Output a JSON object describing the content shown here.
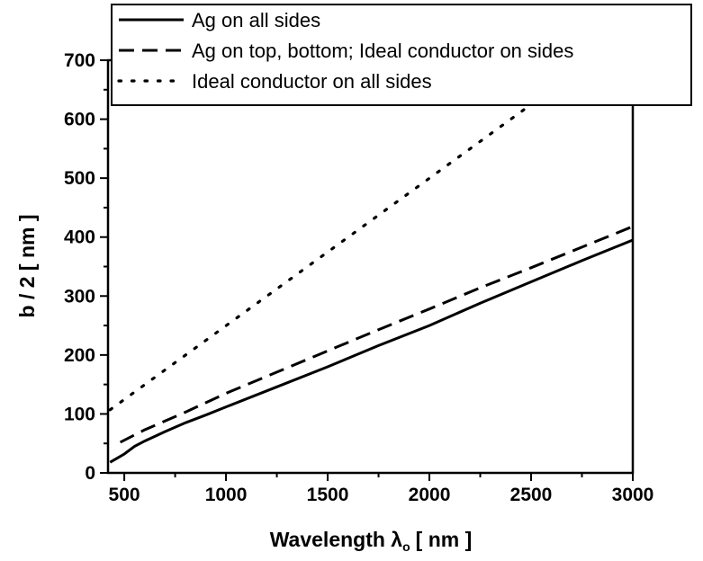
{
  "chart_data": {
    "type": "line",
    "title": "",
    "xlabel": "Wavelength λ",
    "xlabel_subscript": "o",
    "xlabel_unit": "[ nm ]",
    "ylabel": "b / 2 [ nm ]",
    "xlim": [
      420,
      3000
    ],
    "ylim": [
      0,
      700
    ],
    "xticks": [
      500,
      1000,
      1500,
      2000,
      2500,
      3000
    ],
    "yticks": [
      0,
      100,
      200,
      300,
      400,
      500,
      600,
      700
    ],
    "grid": false,
    "legend_position": "top",
    "series": [
      {
        "name": "Ag on all sides",
        "style": "solid",
        "points": [
          [
            430,
            18
          ],
          [
            500,
            32
          ],
          [
            550,
            45
          ],
          [
            600,
            54
          ],
          [
            700,
            70
          ],
          [
            800,
            85
          ],
          [
            900,
            98
          ],
          [
            1000,
            112
          ],
          [
            1250,
            146
          ],
          [
            1500,
            180
          ],
          [
            1750,
            216
          ],
          [
            2000,
            250
          ],
          [
            2250,
            288
          ],
          [
            2500,
            324
          ],
          [
            2750,
            360
          ],
          [
            3000,
            395
          ]
        ]
      },
      {
        "name": "Ag on top, bottom; Ideal conductor on sides",
        "style": "dashed",
        "points": [
          [
            480,
            52
          ],
          [
            600,
            73
          ],
          [
            800,
            103
          ],
          [
            1000,
            135
          ],
          [
            1250,
            171
          ],
          [
            1500,
            207
          ],
          [
            1750,
            243
          ],
          [
            2000,
            278
          ],
          [
            2250,
            314
          ],
          [
            2500,
            348
          ],
          [
            2750,
            383
          ],
          [
            3000,
            418
          ]
        ]
      },
      {
        "name": "Ideal conductor on all sides",
        "style": "dotted",
        "points": [
          [
            430,
            107
          ],
          [
            2580,
            645
          ]
        ]
      }
    ]
  }
}
